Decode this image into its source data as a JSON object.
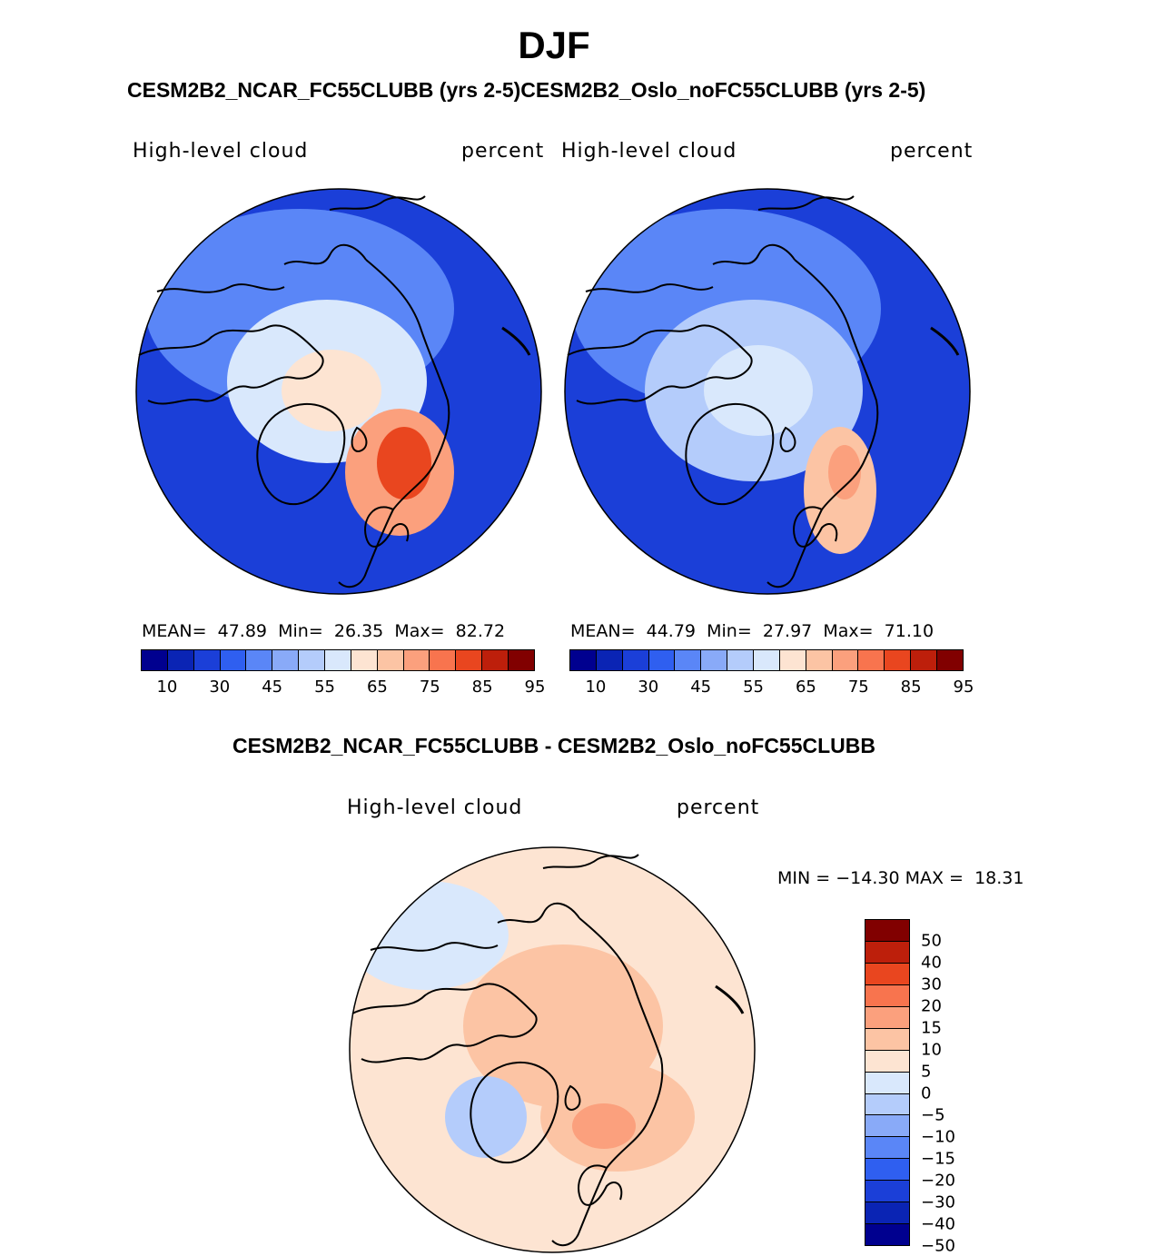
{
  "header": {
    "season": "DJF",
    "runs_title": "CESM2B2_NCAR_FC55CLUBB (yrs 2-5)CESM2B2_Oslo_noFC55CLUBB (yrs 2-5)",
    "diff_title": "CESM2B2_NCAR_FC55CLUBB - CESM2B2_Oslo_noFC55CLUBB"
  },
  "colors": {
    "abs_scale": [
      "#00008f",
      "#0a24b4",
      "#1b3fd8",
      "#2f5ff0",
      "#5a86f7",
      "#89aaf8",
      "#b4ccfb",
      "#d9e8fc",
      "#fde4d2",
      "#fcc4a4",
      "#fba07d",
      "#f8744e",
      "#e9461f",
      "#bd1f0b",
      "#810000"
    ],
    "diff_scale": [
      "#810000",
      "#bd1f0b",
      "#e9461f",
      "#f8744e",
      "#fba07d",
      "#fcc4a4",
      "#fde4d2",
      "#d9e8fc",
      "#b4ccfb",
      "#89aaf8",
      "#5a86f7",
      "#2f5ff0",
      "#1b3fd8",
      "#0a24b4",
      "#00008f"
    ],
    "coast": "#000000"
  },
  "chart_data": [
    {
      "type": "heatmap",
      "projection": "north-polar-stereographic",
      "variable": "High-level cloud",
      "units": "percent",
      "model": "CESM2B2_NCAR_FC55CLUBB (yrs 2-5)",
      "stats": {
        "mean_label": "MEAN=",
        "mean": "47.89",
        "min_label": "Min=",
        "min": "26.35",
        "max_label": "Max=",
        "max": "82.72"
      },
      "colorbar_ticks": [
        "10",
        "30",
        "45",
        "55",
        "65",
        "75",
        "85",
        "95"
      ],
      "colorbar_levels": 15,
      "regions": [
        {
          "name": "background",
          "value": 30
        },
        {
          "name": "north-pacific",
          "value": 40
        },
        {
          "name": "arctic-ocean",
          "value": 55
        },
        {
          "name": "central-arctic",
          "value": 60
        },
        {
          "name": "scandinavia-barents",
          "value": 70
        },
        {
          "name": "northwest-russia",
          "value": 80
        }
      ]
    },
    {
      "type": "heatmap",
      "projection": "north-polar-stereographic",
      "variable": "High-level cloud",
      "units": "percent",
      "model": "CESM2B2_Oslo_noFC55CLUBB (yrs 2-5)",
      "stats": {
        "mean_label": "MEAN=",
        "mean": "44.79",
        "min_label": "Min=",
        "min": "27.97",
        "max_label": "Max=",
        "max": "71.10"
      },
      "colorbar_ticks": [
        "10",
        "30",
        "45",
        "55",
        "65",
        "75",
        "85",
        "95"
      ],
      "colorbar_levels": 15,
      "regions": [
        {
          "name": "background",
          "value": 30
        },
        {
          "name": "north-pacific",
          "value": 40
        },
        {
          "name": "arctic-ocean",
          "value": 50
        },
        {
          "name": "central-arctic",
          "value": 55
        },
        {
          "name": "scandinavia-barents",
          "value": 62
        },
        {
          "name": "northwest-russia",
          "value": 68
        }
      ]
    },
    {
      "type": "heatmap",
      "projection": "north-polar-stereographic",
      "variable": "High-level cloud",
      "units": "percent",
      "title": "CESM2B2_NCAR_FC55CLUBB - CESM2B2_Oslo_noFC55CLUBB",
      "stats": {
        "min_label": "MIN =",
        "min": "−14.30",
        "max_label": "MAX =",
        "max": "18.31"
      },
      "colorbar_ticks": [
        "50",
        "40",
        "30",
        "20",
        "15",
        "10",
        "5",
        "0",
        "−5",
        "−10",
        "−15",
        "−20",
        "−30",
        "−40",
        "−50"
      ],
      "colorbar_levels": 15,
      "regions": [
        {
          "name": "background",
          "value": 2
        },
        {
          "name": "north-pacific",
          "value": -2
        },
        {
          "name": "arctic-ocean",
          "value": 7
        },
        {
          "name": "greenland",
          "value": -8
        },
        {
          "name": "scandinavia-barents",
          "value": 10
        },
        {
          "name": "northwest-russia",
          "value": 13
        }
      ]
    }
  ]
}
